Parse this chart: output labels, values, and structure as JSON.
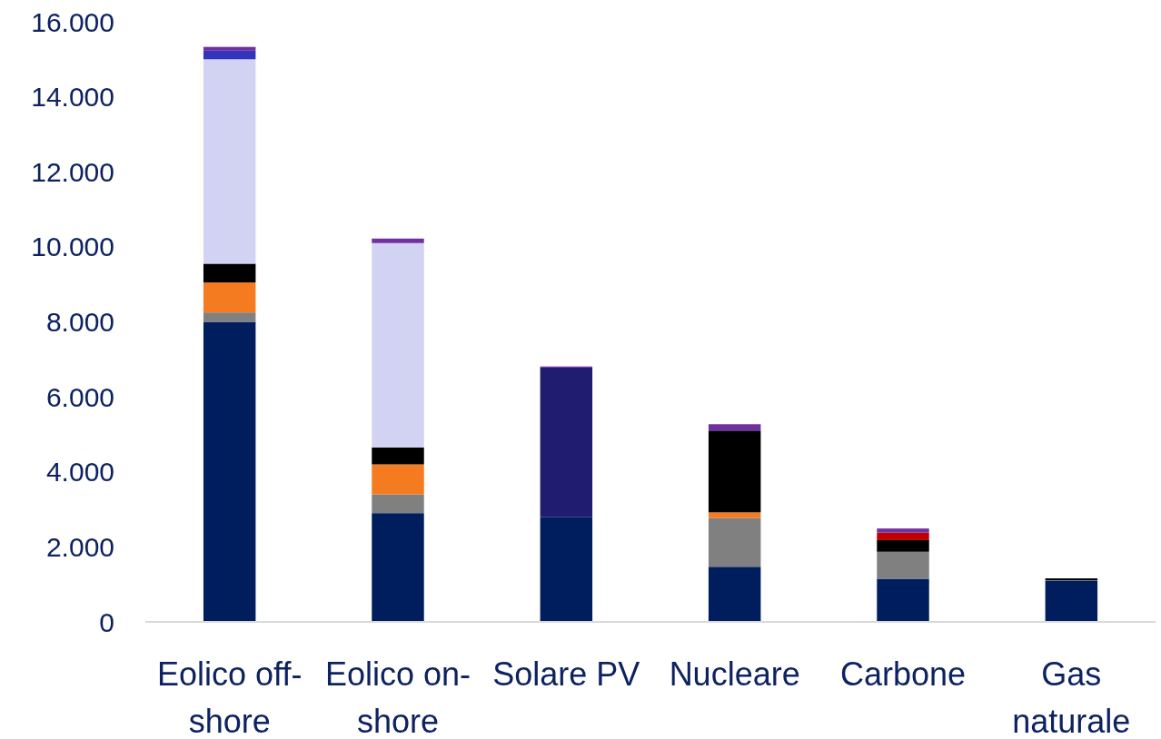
{
  "chart_data": {
    "type": "bar",
    "stacked": true,
    "categories": [
      "Eolico off-shore",
      "Eolico on-shore",
      "Solare PV",
      "Nucleare",
      "Carbone",
      "Gas naturale"
    ],
    "series": [
      {
        "color": "#001e5e",
        "values": [
          8000,
          2900,
          2800,
          1470,
          1150,
          1100
        ]
      },
      {
        "color": "#808080",
        "values": [
          250,
          500,
          null,
          1300,
          720,
          10
        ]
      },
      {
        "color": "#f47b20",
        "values": [
          800,
          800,
          null,
          150,
          null,
          null
        ]
      },
      {
        "color": "#000000",
        "values": [
          500,
          450,
          null,
          2180,
          310,
          50
        ]
      },
      {
        "color": "#201c70",
        "values": [
          null,
          null,
          3980,
          null,
          null,
          null
        ]
      },
      {
        "color": "#d2d2f2",
        "values": [
          5450,
          5450,
          null,
          null,
          null,
          null
        ]
      },
      {
        "color": "#3333bb",
        "values": [
          230,
          null,
          null,
          null,
          null,
          null
        ]
      },
      {
        "color": "#c00000",
        "values": [
          null,
          null,
          null,
          null,
          200,
          null
        ]
      },
      {
        "color": "#7030a0",
        "values": [
          100,
          120,
          30,
          170,
          110,
          null
        ]
      }
    ],
    "ylim": [
      0,
      16000
    ],
    "yticks": [
      {
        "value": 0,
        "label": "0"
      },
      {
        "value": 2000,
        "label": "2.000"
      },
      {
        "value": 4000,
        "label": "4.000"
      },
      {
        "value": 6000,
        "label": "6.000"
      },
      {
        "value": 8000,
        "label": "8.000"
      },
      {
        "value": 10000,
        "label": "10.000"
      },
      {
        "value": 12000,
        "label": "12.000"
      },
      {
        "value": 14000,
        "label": "14.000"
      },
      {
        "value": 16000,
        "label": "16.000"
      }
    ],
    "grid": false
  }
}
